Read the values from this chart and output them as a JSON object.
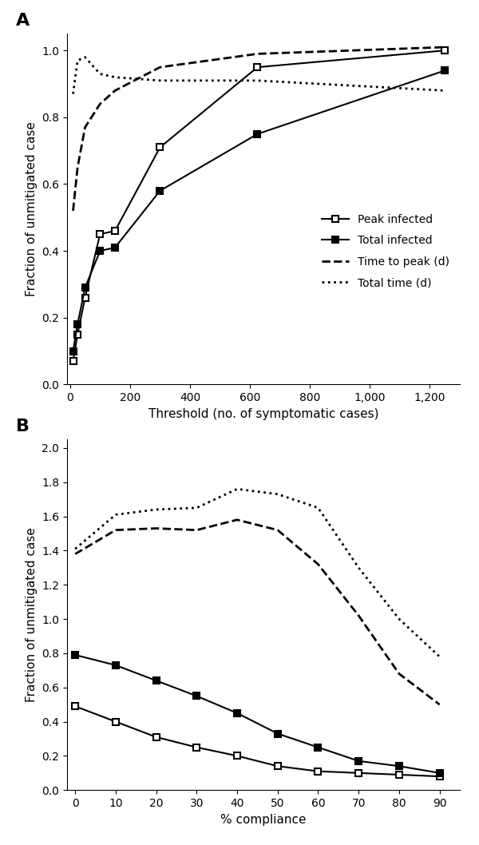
{
  "panel_A": {
    "xlabel": "Threshold (no. of symptomatic cases)",
    "ylabel": "Fraction of unmitigated case",
    "ylim": [
      0.0,
      1.05
    ],
    "xlim": [
      -10,
      1300
    ],
    "xticks": [
      0,
      200,
      400,
      600,
      800,
      1000,
      1200
    ],
    "yticks": [
      0.0,
      0.2,
      0.4,
      0.6,
      0.8,
      1.0
    ],
    "peak_infected_x": [
      10,
      25,
      50,
      100,
      150,
      300,
      625,
      1250
    ],
    "peak_infected_y": [
      0.07,
      0.15,
      0.26,
      0.45,
      0.46,
      0.71,
      0.95,
      1.0
    ],
    "total_infected_x": [
      10,
      25,
      50,
      100,
      150,
      300,
      625,
      1250
    ],
    "total_infected_y": [
      0.1,
      0.18,
      0.29,
      0.4,
      0.41,
      0.58,
      0.75,
      0.94
    ],
    "time_to_peak_x": [
      10,
      25,
      50,
      100,
      150,
      300,
      625,
      1250
    ],
    "time_to_peak_y": [
      0.52,
      0.65,
      0.77,
      0.84,
      0.88,
      0.95,
      0.99,
      1.01
    ],
    "total_time_x": [
      10,
      25,
      50,
      100,
      150,
      300,
      625,
      1250
    ],
    "total_time_y": [
      0.87,
      0.97,
      0.98,
      0.93,
      0.92,
      0.91,
      0.91,
      0.88
    ],
    "legend_labels": [
      "Peak infected",
      "Total infected",
      "Time to peak (d)",
      "Total time (d)"
    ]
  },
  "panel_B": {
    "xlabel": "% compliance",
    "ylabel": "Fraction of unmitigated case",
    "ylim": [
      0.0,
      2.05
    ],
    "xlim": [
      -2,
      95
    ],
    "xticks": [
      0,
      10,
      20,
      30,
      40,
      50,
      60,
      70,
      80,
      90
    ],
    "yticks": [
      0.0,
      0.2,
      0.4,
      0.6,
      0.8,
      1.0,
      1.2,
      1.4,
      1.6,
      1.8,
      2.0
    ],
    "peak_infected_x": [
      0,
      10,
      20,
      30,
      40,
      50,
      60,
      70,
      80,
      90
    ],
    "peak_infected_y": [
      0.49,
      0.4,
      0.31,
      0.25,
      0.2,
      0.14,
      0.11,
      0.1,
      0.09,
      0.08
    ],
    "total_infected_x": [
      0,
      10,
      20,
      30,
      40,
      50,
      60,
      70,
      80,
      90
    ],
    "total_infected_y": [
      0.79,
      0.73,
      0.64,
      0.55,
      0.45,
      0.33,
      0.25,
      0.17,
      0.14,
      0.1
    ],
    "time_to_peak_x": [
      0,
      10,
      20,
      30,
      40,
      50,
      60,
      70,
      80,
      90
    ],
    "time_to_peak_y": [
      1.38,
      1.52,
      1.53,
      1.52,
      1.58,
      1.52,
      1.32,
      1.02,
      0.68,
      0.5
    ],
    "total_time_x": [
      0,
      10,
      20,
      30,
      40,
      50,
      60,
      70,
      80,
      90
    ],
    "total_time_y": [
      1.41,
      1.61,
      1.64,
      1.65,
      1.76,
      1.73,
      1.65,
      1.3,
      1.0,
      0.78
    ]
  }
}
